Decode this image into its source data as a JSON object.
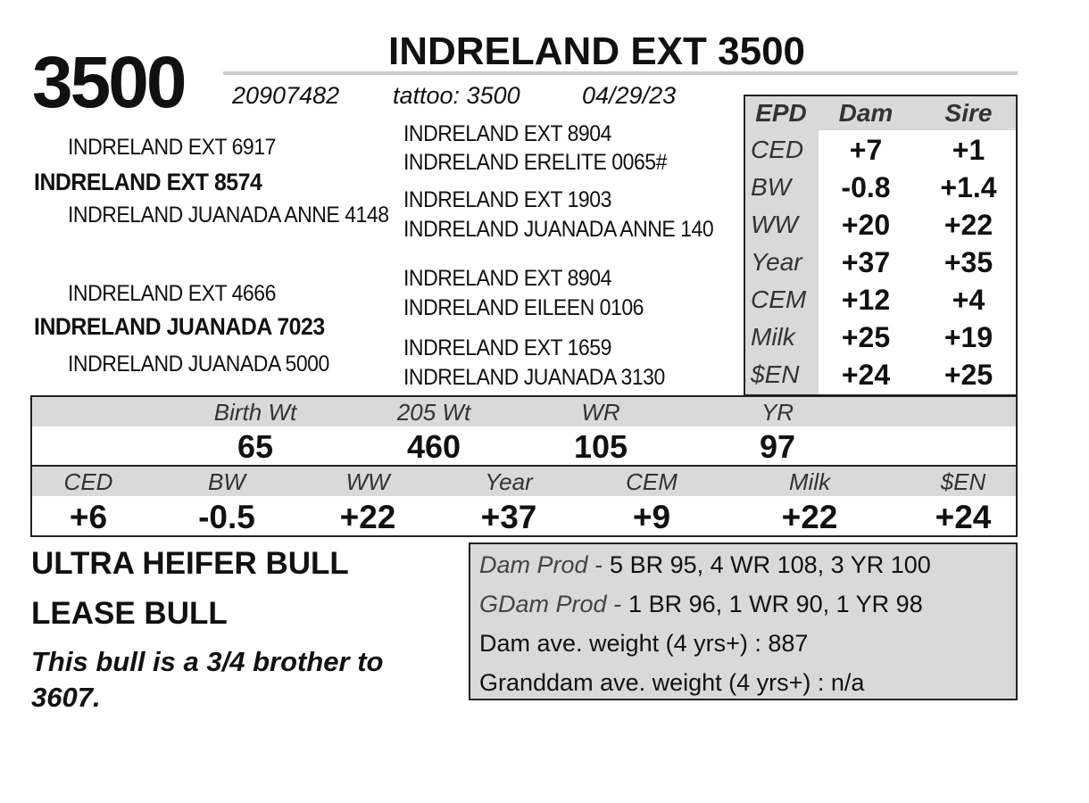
{
  "lot": "3500",
  "name": "INDRELAND EXT 3500",
  "registration": "20907482",
  "tattoo": "tattoo: 3500",
  "birth_date": "04/29/23",
  "pedigree": {
    "sire_sire": "INDRELAND EXT 6917",
    "sire": "INDRELAND EXT 8574",
    "sire_dam": "INDRELAND JUANADA ANNE 4148",
    "dam_sire": "INDRELAND EXT 4666",
    "dam": "INDRELAND JUANADA 7023",
    "dam_dam": "INDRELAND JUANADA 5000",
    "third_generation": [
      "INDRELAND EXT 8904",
      "INDRELAND ERELITE 0065#",
      "INDRELAND EXT 1903",
      "INDRELAND JUANADA ANNE 140",
      "INDRELAND EXT 8904",
      "INDRELAND EILEEN 0106",
      "INDRELAND EXT 1659",
      "INDRELAND JUANADA 3130"
    ]
  },
  "parent_epd": {
    "headers": [
      "EPD",
      "Dam",
      "Sire"
    ],
    "rows": [
      [
        "CED",
        "+7",
        "+1"
      ],
      [
        "BW",
        "-0.8",
        "+1.4"
      ],
      [
        "WW",
        "+20",
        "+22"
      ],
      [
        "Year",
        "+37",
        "+35"
      ],
      [
        "CEM",
        "+12",
        "+4"
      ],
      [
        "Milk",
        "+25",
        "+19"
      ],
      [
        "$EN",
        "+24",
        "+25"
      ]
    ]
  },
  "performance": {
    "headers": [
      "Birth Wt",
      "205 Wt",
      "WR",
      "YR"
    ],
    "values": [
      65,
      460,
      105,
      97
    ]
  },
  "epd": {
    "headers": [
      "CED",
      "BW",
      "WW",
      "Year",
      "CEM",
      "Milk",
      "$EN"
    ],
    "values": [
      "+6",
      "-0.5",
      "+22",
      "+37",
      "+9",
      "+22",
      "+24"
    ]
  },
  "notes": [
    "ULTRA HEIFER BULL",
    "LEASE BULL"
  ],
  "comment": "This bull is a 3/4 brother to 3607.",
  "production": [
    {
      "label": "Dam Prod -",
      "text": "5 BR 95, 4 WR 108, 3 YR 100"
    },
    {
      "label": "GDam Prod -",
      "text": "1 BR 96, 1 WR 90, 1 YR 98"
    },
    {
      "text": "Dam ave. weight (4 yrs+) : 887"
    },
    {
      "text": "Granddam ave. weight (4 yrs+) : n/a"
    }
  ]
}
